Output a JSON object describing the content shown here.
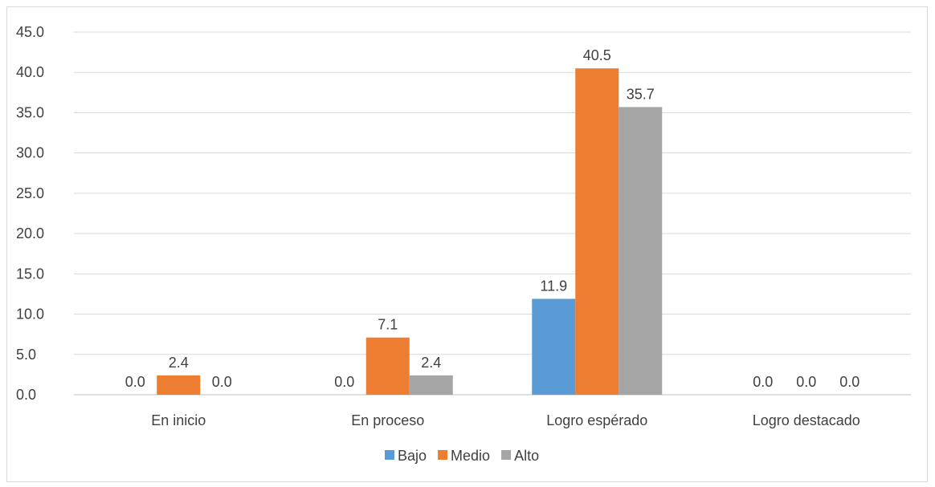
{
  "chart_data": {
    "type": "bar",
    "categories": [
      "En inicio",
      "En proceso",
      "Logro espérado",
      "Logro destacado"
    ],
    "series": [
      {
        "name": "Bajo",
        "values": [
          0.0,
          0.0,
          11.9,
          0.0
        ],
        "color": "#5b9bd5"
      },
      {
        "name": "Medio",
        "values": [
          2.4,
          7.1,
          40.5,
          0.0
        ],
        "color": "#ed7d31"
      },
      {
        "name": "Alto",
        "values": [
          0.0,
          2.4,
          35.7,
          0.0
        ],
        "color": "#a5a5a5"
      }
    ],
    "ylim": [
      0,
      45
    ],
    "yticks": [
      "0.0",
      "5.0",
      "10.0",
      "15.0",
      "20.0",
      "25.0",
      "30.0",
      "35.0",
      "40.0",
      "45.0"
    ],
    "grid": true,
    "legend_position": "bottom",
    "data_labels_decimals": 1
  }
}
